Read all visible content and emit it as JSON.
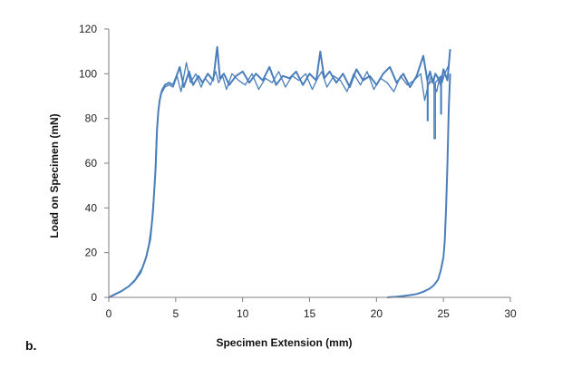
{
  "panel_label": "b.",
  "chart_data": {
    "type": "line",
    "title": "",
    "xlabel": "Specimen Extension (mm)",
    "ylabel": "Load on Specimen (mN)",
    "xlim": [
      0,
      30
    ],
    "ylim": [
      0,
      120
    ],
    "x_ticks": [
      0,
      5,
      10,
      15,
      20,
      25,
      30
    ],
    "y_ticks": [
      0,
      20,
      40,
      60,
      80,
      100,
      120
    ],
    "grid": false,
    "legend": "none",
    "line_color": "#4a7ebb",
    "series": [
      {
        "x": [
          0,
          0.5,
          1.0,
          1.5,
          2.0,
          2.5,
          2.8,
          3.1,
          3.3,
          3.5,
          3.6,
          3.7,
          3.8,
          3.9,
          4.0,
          4.2,
          4.5,
          4.8,
          5.0,
          5.3,
          5.6,
          6.0,
          6.3,
          6.7,
          7.0,
          7.4,
          7.8,
          8.1,
          8.3,
          8.6,
          9.0,
          9.5,
          10.0,
          10.5,
          11.0,
          11.5,
          12.0,
          12.5,
          13.0,
          13.5,
          14.0,
          14.5,
          15.0,
          15.5,
          15.8,
          16.1,
          16.5,
          17.0,
          17.5,
          18.0,
          18.5,
          19.0,
          19.5,
          20.0,
          20.5,
          21.0,
          21.5,
          22.0,
          22.5,
          23.0,
          23.5,
          23.8,
          24.0,
          24.2,
          24.4,
          24.6,
          24.8,
          25.0,
          25.3,
          25.5
        ],
        "y": [
          0,
          1.5,
          3,
          5,
          8,
          13,
          18,
          26,
          38,
          58,
          75,
          83,
          88,
          91,
          93,
          95,
          96,
          95,
          98,
          103,
          94,
          101,
          95,
          99,
          96,
          100,
          97,
          112,
          98,
          100,
          95,
          99,
          101,
          96,
          100,
          97,
          103,
          95,
          99,
          98,
          101,
          95,
          100,
          97,
          110,
          98,
          101,
          96,
          100,
          94,
          102,
          97,
          99,
          95,
          100,
          103,
          96,
          100,
          94,
          99,
          108,
          97,
          101,
          96,
          100,
          98,
          95,
          102,
          97,
          111
        ]
      },
      {
        "x": [
          20.8,
          21.5,
          22.0,
          22.5,
          23.0,
          23.5,
          24.0,
          24.3,
          24.6,
          24.8,
          25.0,
          25.1,
          25.2,
          25.3,
          25.4,
          25.5
        ],
        "y": [
          0,
          0.3,
          0.6,
          1,
          1.5,
          2.5,
          4,
          5.5,
          8,
          12,
          18,
          25,
          40,
          60,
          85,
          100
        ]
      },
      {
        "x": [
          0,
          0.4,
          0.9,
          1.4,
          1.9,
          2.4,
          2.7,
          3.0,
          3.2,
          3.45,
          3.55,
          3.65,
          3.75,
          3.85,
          4.0,
          4.2,
          4.5,
          4.8,
          5.1,
          5.4,
          5.8,
          6.1,
          6.5,
          6.9,
          7.2,
          7.6,
          8.0,
          8.2,
          8.5,
          8.8,
          9.2,
          9.7,
          10.2,
          10.7,
          11.2,
          11.7,
          12.2,
          12.7,
          13.2,
          13.7,
          14.2,
          14.7,
          15.2,
          15.6,
          15.9,
          16.3,
          16.8,
          17.3,
          17.8,
          18.3,
          18.8,
          19.3,
          19.8,
          20.3,
          20.8,
          21.3,
          21.8,
          22.3,
          22.8,
          23.3,
          23.6,
          23.9,
          24.1,
          24.3,
          24.5,
          24.7,
          24.9,
          25.1,
          25.4
        ],
        "y": [
          0,
          1,
          2.5,
          4.5,
          7,
          11,
          16,
          24,
          33,
          52,
          70,
          80,
          86,
          90,
          92,
          94,
          95,
          94,
          99,
          92,
          105,
          96,
          100,
          94,
          98,
          95,
          101,
          96,
          99,
          93,
          100,
          97,
          95,
          100,
          93,
          98,
          96,
          101,
          94,
          99,
          97,
          100,
          93,
          98,
          101,
          94,
          99,
          97,
          92,
          100,
          95,
          101,
          93,
          98,
          96,
          92,
          99,
          95,
          97,
          100,
          88,
          96,
          99,
          95,
          92,
          98,
          96,
          100,
          104
        ]
      },
      {
        "x": [
          23.8,
          23.8,
          23.85,
          23.85,
          24.3,
          24.3,
          24.4,
          24.4,
          24.8,
          24.8,
          24.85,
          24.85
        ],
        "y": [
          97,
          79,
          79,
          95,
          98,
          71,
          71,
          96,
          99,
          82,
          82,
          97
        ]
      }
    ]
  }
}
